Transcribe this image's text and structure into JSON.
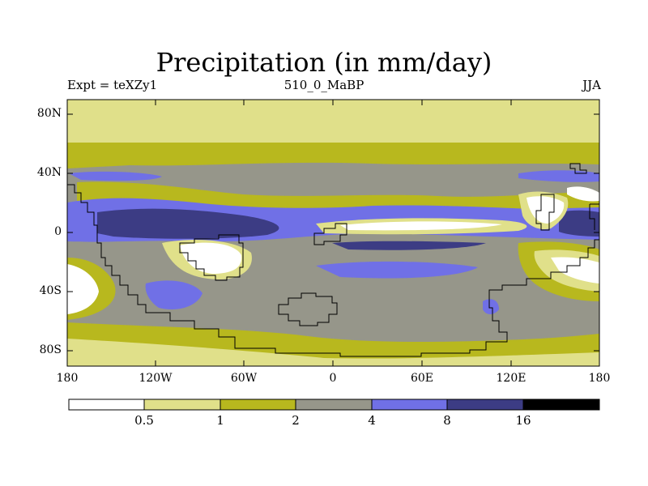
{
  "title": "Precipitation (in mm/day)",
  "subtitle_left": "Expt = teXZy1",
  "subtitle_center": "510_0_MaBP",
  "subtitle_right": "JJA",
  "lat_ticks": [
    "80N",
    "40N",
    "0",
    "40S",
    "80S"
  ],
  "lon_ticks": [
    "180",
    "120W",
    "60W",
    "0",
    "60E",
    "120E",
    "180"
  ],
  "colorbar": {
    "levels": [
      "0.5",
      "1",
      "2",
      "4",
      "8",
      "16"
    ],
    "colors": [
      "#ffffff",
      "#e0e08a",
      "#b8b81e",
      "#96968a",
      "#7070e6",
      "#3c3c84",
      "#000000"
    ]
  },
  "chart_data": {
    "type": "heatmap",
    "title": "Precipitation (in mm/day)",
    "variable": "precipitation",
    "units": "mm/day",
    "experiment": "teXZy1",
    "period": "510_0_MaBP",
    "season": "JJA",
    "x_range": [
      -180,
      180
    ],
    "y_range": [
      -90,
      90
    ],
    "contour_levels": [
      0.5,
      1,
      2,
      4,
      8,
      16
    ]
  }
}
